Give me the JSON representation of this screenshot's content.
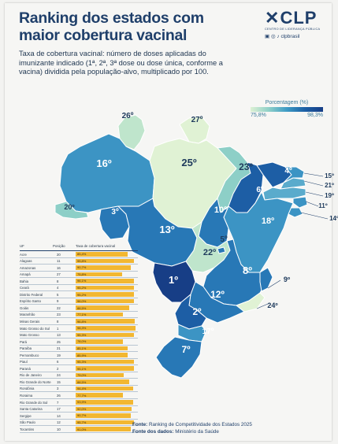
{
  "title": "Ranking dos estados com maior cobertura vacinal",
  "subtitle": "Taxa de cobertura vacinal: número de doses aplicadas do imunizante indicado (1ª, 2ª, 3ª dose ou dose única, conforme a vacina) dividida pela população-alvo, multiplicado por 100.",
  "logo": {
    "mark": "CLP",
    "sub": "CENTRO DE LIDERANÇA PÚBLICA",
    "social": "clpbrasil"
  },
  "legend": {
    "title": "Porcentagem (%)",
    "min": "75,8%",
    "max": "98,3%"
  },
  "table": {
    "headers": {
      "uf": "UF",
      "position": "Posição",
      "rate": "Taxa de cobertura vacinal"
    }
  },
  "chart_data": {
    "type": "table",
    "scale_min": 75.8,
    "scale_max": 98.3,
    "rows": [
      {
        "uf": "Acre",
        "position": "20",
        "rate": 85.4,
        "label": "85,4%"
      },
      {
        "uf": "Alagoas",
        "position": "11",
        "rate": 95.8,
        "label": "95,8%"
      },
      {
        "uf": "Amazonas",
        "position": "16",
        "rate": 90.7,
        "label": "90,7%"
      },
      {
        "uf": "Amapá",
        "position": "27",
        "rate": 75.8,
        "label": "75,8%"
      },
      {
        "uf": "Bahia",
        "position": "8",
        "rate": 96.1,
        "label": "96,1%"
      },
      {
        "uf": "Ceará",
        "position": "4",
        "rate": 95.2,
        "label": "95,2%"
      },
      {
        "uf": "Distrito Federal",
        "position": "5",
        "rate": 95.2,
        "label": "95,2%"
      },
      {
        "uf": "Espírito Santo",
        "position": "9",
        "rate": 96.0,
        "label": "96,0%"
      },
      {
        "uf": "Goiás",
        "position": "22",
        "rate": 88.5,
        "label": "88,5%"
      },
      {
        "uf": "Maranhão",
        "position": "23",
        "rate": 77.1,
        "label": "77,1%"
      },
      {
        "uf": "Minas Gerais",
        "position": "8",
        "rate": 96.8,
        "label": "96,8%"
      },
      {
        "uf": "Mato Grosso do Sul",
        "position": "1",
        "rate": 98.3,
        "label": "98,3%"
      },
      {
        "uf": "Mato Grosso",
        "position": "13",
        "rate": 95.3,
        "label": "95,3%"
      },
      {
        "uf": "Pará",
        "position": "25",
        "rate": 78.0,
        "label": "78,0%"
      },
      {
        "uf": "Paraíba",
        "position": "21",
        "rate": 85.1,
        "label": "85,1%"
      },
      {
        "uf": "Pernambuco",
        "position": "19",
        "rate": 85.9,
        "label": "85,9%"
      },
      {
        "uf": "Piauí",
        "position": "6",
        "rate": 95.3,
        "label": "95,3%"
      },
      {
        "uf": "Paraná",
        "position": "2",
        "rate": 95.1,
        "label": "95,1%"
      },
      {
        "uf": "Rio de Janeiro",
        "position": "24",
        "rate": 79.0,
        "label": "79,0%"
      },
      {
        "uf": "Rio Grande do Norte",
        "position": "15",
        "rate": 88.5,
        "label": "88,5%"
      },
      {
        "uf": "Rondônia",
        "position": "3",
        "rate": 94.4,
        "label": "94,4%"
      },
      {
        "uf": "Roraima",
        "position": "26",
        "rate": 77.7,
        "label": "77,7%"
      },
      {
        "uf": "Rio Grande do Sul",
        "position": "7",
        "rate": 93.9,
        "label": "93,9%"
      },
      {
        "uf": "Santa Catarina",
        "position": "17",
        "rate": 92.0,
        "label": "92,0%"
      },
      {
        "uf": "Sergipe",
        "position": "14",
        "rate": 90.7,
        "label": "90,7%"
      },
      {
        "uf": "São Paulo",
        "position": "12",
        "rate": 95.7,
        "label": "95,7%"
      },
      {
        "uf": "Tocantins",
        "position": "10",
        "rate": 91.0,
        "label": "91,0%"
      }
    ],
    "map": {
      "colors": {
        "c1": "#173e86",
        "c2": "#1d5ea5",
        "c3": "#2878b6",
        "c4": "#3c94c4",
        "c5": "#5aabcc",
        "c6": "#8dcfc7",
        "c7": "#bfe5cc",
        "c8": "#e0f2d4"
      },
      "labels": [
        "1º",
        "2º",
        "3º",
        "4º",
        "5º",
        "6º",
        "7º",
        "8º",
        "9º",
        "10º",
        "11º",
        "12º",
        "13º",
        "14º",
        "15º",
        "16º",
        "17º",
        "18º",
        "19º",
        "20º",
        "21º",
        "22º",
        "23º",
        "24º",
        "25º",
        "26º",
        "27º"
      ]
    }
  },
  "sources": {
    "source_label": "Fonte:",
    "source_text": "Ranking de Competitividade dos Estados 2025",
    "data_label": "Fonte dos dados:",
    "data_text": "Ministério da Saúde"
  }
}
